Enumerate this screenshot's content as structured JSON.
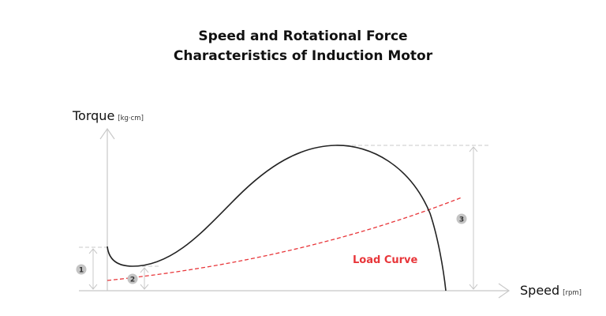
{
  "title": {
    "line1": "Speed and Rotational Force",
    "line2": "Characteristics of Induction Motor"
  },
  "y_axis": {
    "label": "Torque",
    "unit": "[kg·cm]"
  },
  "x_axis": {
    "label": "Speed",
    "unit": "[rpm]"
  },
  "curves": {
    "load_curve_label": "Load Curve"
  },
  "markers": [
    "1",
    "2",
    "3"
  ],
  "colors": {
    "torque_curve": "#222222",
    "load_curve": "#e8363a",
    "axis": "#c8c8c8",
    "marker": "#c4c4c4"
  }
}
